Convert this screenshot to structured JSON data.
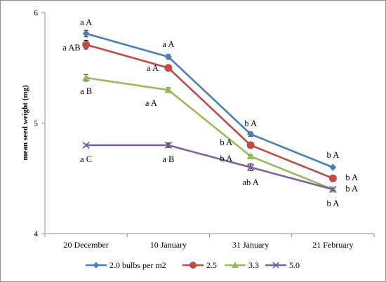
{
  "chart_data": {
    "type": "line",
    "title": "",
    "xlabel": "",
    "ylabel": "mean seed weight (mg)",
    "categories": [
      "20 December",
      "10 January",
      "31 January",
      "21 February"
    ],
    "ylim": [
      4,
      6
    ],
    "yticks": [
      "4",
      "5",
      "6"
    ],
    "grid": false,
    "legend_position": "bottom",
    "series": [
      {
        "name": "2.0 bulbs per m2",
        "color": "#4a7ebb",
        "marker": "diamond",
        "values": [
          5.81,
          5.6,
          4.9,
          4.6
        ],
        "errors": [
          0.03,
          0.02,
          0.02,
          0.01
        ],
        "labels": [
          "a A",
          "a A",
          "b A",
          "b A"
        ]
      },
      {
        "name": "2.5",
        "color": "#be4b48",
        "marker": "circle",
        "values": [
          5.71,
          5.5,
          4.8,
          4.5
        ],
        "errors": [
          0.04,
          0.01,
          0.02,
          0.01
        ],
        "labels": [
          "a AB",
          "a A",
          "b A",
          "b A"
        ]
      },
      {
        "name": "3.3",
        "color": "#98b954",
        "marker": "triangle",
        "values": [
          5.41,
          5.3,
          4.7,
          4.4
        ],
        "errors": [
          0.03,
          0.02,
          0.01,
          0.01
        ],
        "labels": [
          "a B",
          "a A",
          "b A",
          "b A"
        ]
      },
      {
        "name": "5.0",
        "color": "#7d60a0",
        "marker": "x",
        "values": [
          4.8,
          4.8,
          4.6,
          4.4
        ],
        "errors": [
          0.01,
          0.02,
          0.03,
          0.01
        ],
        "labels": [
          "a C",
          "a B",
          "ab A",
          "b A"
        ]
      }
    ]
  }
}
